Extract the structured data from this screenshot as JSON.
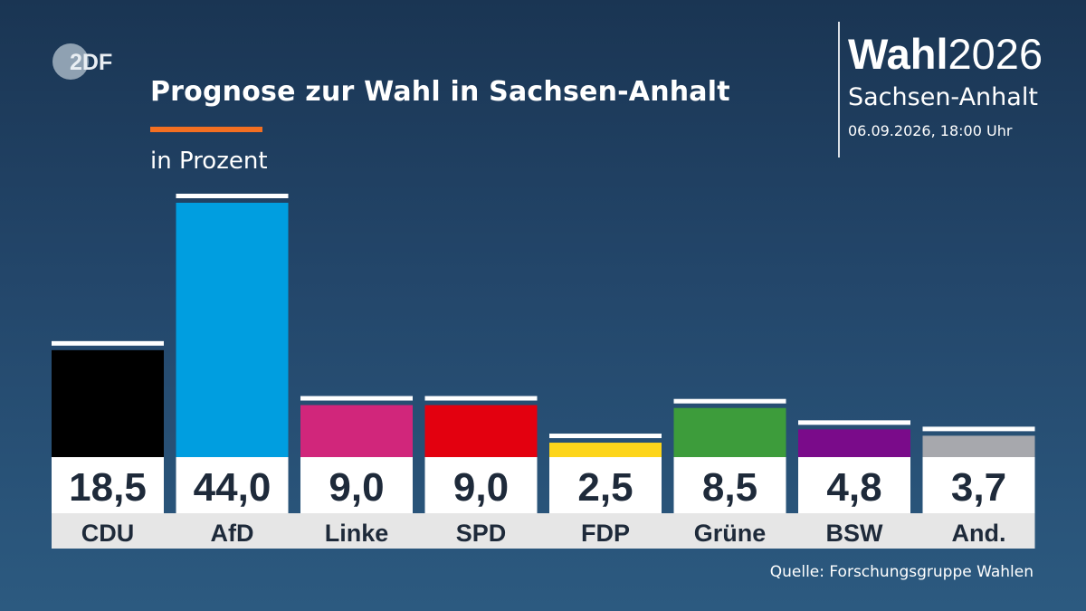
{
  "header": {
    "logo_text": "2DF",
    "title": "Prognose zur Wahl in Sachsen-Anhalt",
    "subtitle": "in Prozent"
  },
  "brand": {
    "word_bold": "Wahl",
    "year": "2026",
    "region": "Sachsen-Anhalt",
    "datetime": "06.09.2026, 18:00 Uhr"
  },
  "source": "Quelle: Forschungsgruppe Wahlen",
  "colors": {
    "accent": "#f36f21",
    "background_top": "#1a3553",
    "background_bottom": "#2c5a80"
  },
  "chart_data": {
    "type": "bar",
    "title": "Prognose zur Wahl in Sachsen-Anhalt",
    "ylabel": "in Prozent",
    "categories": [
      "CDU",
      "AfD",
      "Linke",
      "SPD",
      "FDP",
      "Grüne",
      "BSW",
      "And."
    ],
    "values": [
      18.5,
      44.0,
      9.0,
      9.0,
      2.5,
      8.5,
      4.8,
      3.7
    ],
    "value_labels": [
      "18,5",
      "44,0",
      "9,0",
      "9,0",
      "2,5",
      "8,5",
      "4,8",
      "3,7"
    ],
    "colors": [
      "#000000",
      "#009ee0",
      "#d1267b",
      "#e3000f",
      "#fdd51b",
      "#3d9c3b",
      "#7a0b8a",
      "#a7a8ad"
    ],
    "ylim": [
      0,
      44
    ]
  }
}
